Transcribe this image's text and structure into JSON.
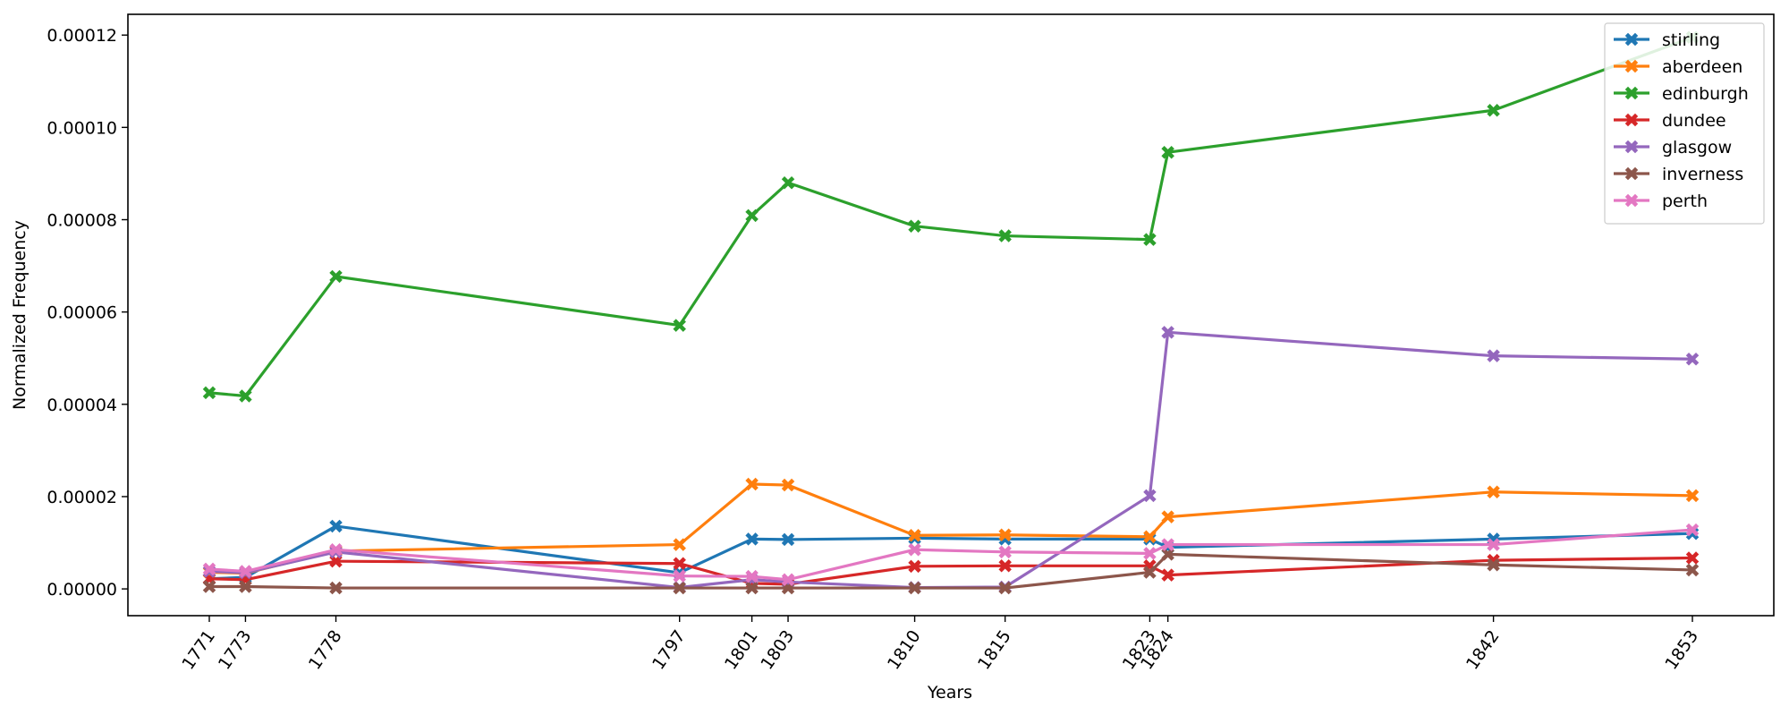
{
  "chart_data": {
    "type": "line",
    "title": "",
    "xlabel": "Years",
    "ylabel": "Normalized Frequency",
    "x": [
      1771,
      1773,
      1778,
      1797,
      1801,
      1803,
      1810,
      1815,
      1823,
      1824,
      1842,
      1853
    ],
    "x_tick_labels": [
      "1771",
      "1773",
      "1778",
      "1797",
      "1801",
      "1803",
      "1810",
      "1815",
      "1823",
      "1824",
      "1842",
      "1853"
    ],
    "xlim": [
      1766.5,
      1857.5
    ],
    "ylim": [
      -5.8e-06,
      0.0001245
    ],
    "y_ticks": [
      0,
      2e-05,
      4e-05,
      6e-05,
      8e-05,
      0.0001,
      0.00012
    ],
    "y_tick_labels": [
      "0.00000",
      "0.00002",
      "0.00004",
      "0.00006",
      "0.00008",
      "0.00010",
      "0.00012"
    ],
    "grid": false,
    "legend_position": "top-right",
    "marker": "X",
    "series": [
      {
        "name": "stirling",
        "color": "#1f77b4",
        "values": [
          2.2e-06,
          2.5e-06,
          1.36e-05,
          3.5e-06,
          1.08e-05,
          1.07e-05,
          1.1e-05,
          1.08e-05,
          1.08e-05,
          9e-06,
          1.08e-05,
          1.2e-05
        ]
      },
      {
        "name": "aberdeen",
        "color": "#ff7f0e",
        "values": [
          3.6e-06,
          3.4e-06,
          8.2e-06,
          9.6e-06,
          2.27e-05,
          2.25e-05,
          1.16e-05,
          1.17e-05,
          1.13e-05,
          1.56e-05,
          2.1e-05,
          2.02e-05
        ]
      },
      {
        "name": "edinburgh",
        "color": "#2ca02c",
        "values": [
          4.25e-05,
          4.18e-05,
          6.77e-05,
          5.71e-05,
          8.09e-05,
          8.8e-05,
          7.86e-05,
          7.65e-05,
          7.57e-05,
          9.46e-05,
          0.0001037,
          0.0001195
        ]
      },
      {
        "name": "dundee",
        "color": "#d62728",
        "values": [
          2.2e-06,
          2e-06,
          6e-06,
          5.5e-06,
          1.2e-06,
          1e-06,
          4.9e-06,
          5e-06,
          5e-06,
          3e-06,
          6.2e-06,
          6.7e-06
        ]
      },
      {
        "name": "glasgow",
        "color": "#9467bd",
        "values": [
          3.8e-06,
          3.5e-06,
          8e-06,
          3e-07,
          2e-06,
          1.5e-06,
          3e-07,
          4e-07,
          2.02e-05,
          5.56e-05,
          5.05e-05,
          4.98e-05
        ]
      },
      {
        "name": "inverness",
        "color": "#8c564b",
        "values": [
          5e-07,
          5e-07,
          2e-07,
          2e-07,
          2e-07,
          2e-07,
          2e-07,
          2e-07,
          3.6e-06,
          7.5e-06,
          5.2e-06,
          4.1e-06
        ]
      },
      {
        "name": "perth",
        "color": "#e377c2",
        "values": [
          4.3e-06,
          3.8e-06,
          8.5e-06,
          2.8e-06,
          2.7e-06,
          2e-06,
          8.5e-06,
          8e-06,
          7.7e-06,
          9.6e-06,
          9.6e-06,
          1.28e-05
        ]
      }
    ]
  }
}
